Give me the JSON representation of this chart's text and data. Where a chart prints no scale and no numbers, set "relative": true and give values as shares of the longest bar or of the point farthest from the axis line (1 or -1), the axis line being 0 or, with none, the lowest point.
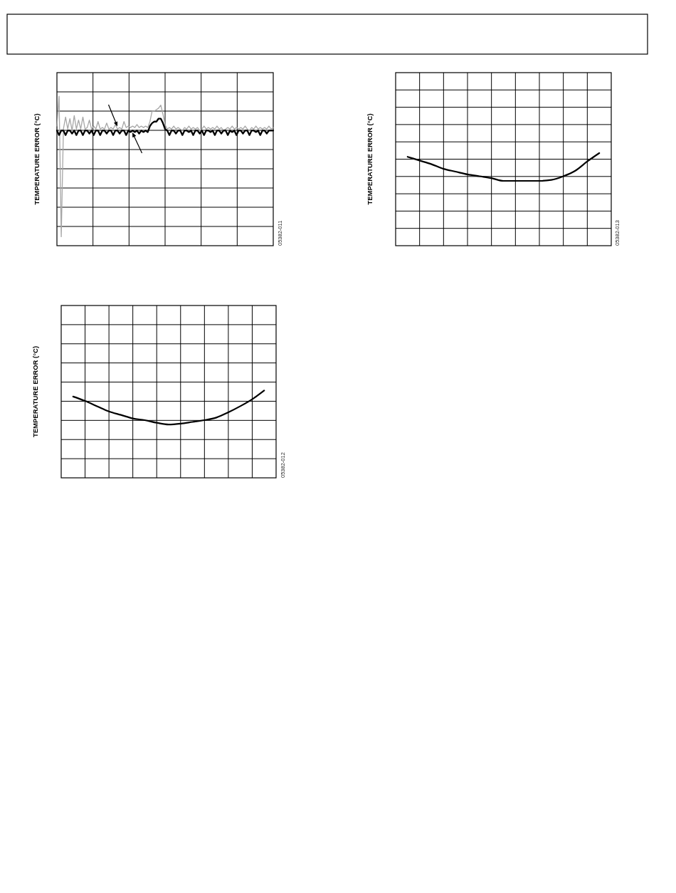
{
  "chart_data": [
    {
      "type": "line",
      "ylabel": "TEMPERATURE ERROR (°C)",
      "relative": true,
      "grid": true,
      "annotations": [
        "05382-011"
      ],
      "categories": [
        null,
        null,
        null,
        null,
        null,
        null,
        null,
        null,
        null,
        null,
        null,
        null,
        null,
        null,
        null,
        null,
        null,
        null,
        null,
        null,
        null,
        null,
        null,
        null,
        null,
        null,
        null,
        null,
        null,
        null,
        null,
        null,
        null,
        null,
        null,
        null,
        null,
        null,
        null,
        null,
        null,
        null,
        null,
        null,
        null,
        null,
        null,
        null,
        null,
        null,
        null,
        null,
        null,
        null,
        null,
        null,
        null,
        null,
        null,
        null,
        null,
        null,
        null,
        null,
        null,
        null,
        null,
        null,
        null,
        null,
        null,
        null,
        null,
        null,
        null,
        null,
        null,
        null,
        null,
        null,
        null,
        null,
        null,
        null,
        null,
        null,
        null,
        null,
        null,
        null,
        null,
        null,
        null,
        null,
        null,
        null,
        null,
        null,
        null,
        null,
        null
      ],
      "series": [
        {
          "color": "#a6a6a6",
          "values": [
            0.8,
            1.0,
            0.06,
            0.78,
            0.86,
            0.78,
            0.85,
            0.77,
            0.87,
            0.78,
            0.84,
            0.78,
            0.86,
            0.78,
            0.79,
            0.84,
            0.78,
            0.8,
            0.78,
            0.83,
            0.78,
            0.79,
            0.78,
            0.82,
            0.78,
            0.79,
            0.78,
            0.81,
            0.78,
            0.79,
            0.78,
            0.83,
            0.79,
            0.8,
            0.79,
            0.8,
            0.79,
            0.81,
            0.79,
            0.8,
            0.79,
            0.8,
            0.79,
            0.83,
            0.9,
            0.9,
            0.91,
            0.92,
            0.94,
            0.88,
            0.81,
            0.78,
            0.79,
            0.78,
            0.8,
            0.78,
            0.79,
            0.78,
            0.77,
            0.79,
            0.78,
            0.8,
            0.78,
            0.79,
            0.78,
            0.79,
            0.77,
            0.78,
            0.8,
            0.78,
            0.79,
            0.78,
            0.79,
            0.78,
            0.8,
            0.78,
            0.79,
            0.77,
            0.78,
            0.79,
            0.78,
            0.8,
            0.78,
            0.79,
            0.78,
            0.79,
            0.78,
            0.8,
            0.78,
            0.77,
            0.79,
            0.78,
            0.8,
            0.78,
            0.79,
            0.78,
            0.79,
            0.78,
            0.8,
            0.78,
            0.79
          ]
        },
        {
          "color": "#000000",
          "values": [
            0.77,
            0.74,
            0.77,
            0.77,
            0.74,
            0.77,
            0.77,
            0.75,
            0.77,
            0.74,
            0.77,
            0.77,
            0.74,
            0.77,
            0.77,
            0.75,
            0.77,
            0.74,
            0.77,
            0.77,
            0.74,
            0.77,
            0.77,
            0.75,
            0.77,
            0.77,
            0.74,
            0.77,
            0.77,
            0.75,
            0.77,
            0.77,
            0.74,
            0.77,
            0.76,
            0.77,
            0.76,
            0.77,
            0.75,
            0.77,
            0.76,
            0.77,
            0.76,
            0.8,
            0.82,
            0.83,
            0.83,
            0.85,
            0.85,
            0.82,
            0.78,
            0.77,
            0.74,
            0.77,
            0.77,
            0.75,
            0.77,
            0.77,
            0.74,
            0.77,
            0.77,
            0.76,
            0.77,
            0.74,
            0.77,
            0.77,
            0.75,
            0.77,
            0.74,
            0.77,
            0.77,
            0.76,
            0.77,
            0.74,
            0.77,
            0.77,
            0.75,
            0.77,
            0.77,
            0.74,
            0.77,
            0.76,
            0.77,
            0.74,
            0.77,
            0.77,
            0.75,
            0.77,
            0.77,
            0.74,
            0.77,
            0.77,
            0.76,
            0.77,
            0.74,
            0.77,
            0.77,
            0.75,
            0.77,
            0.77,
            0.77
          ]
        }
      ]
    },
    {
      "type": "line",
      "ylabel": "TEMPERATURE ERROR (°C)",
      "relative": true,
      "grid": true,
      "annotations": [
        "05382-013"
      ],
      "categories": [
        null,
        null,
        null,
        null,
        null,
        null,
        null,
        null,
        null,
        null,
        null,
        null,
        null,
        null,
        null,
        null,
        null
      ],
      "series": [
        {
          "color": "#000000",
          "values": [
            0.96,
            0.92,
            0.88,
            0.83,
            0.8,
            0.77,
            0.75,
            0.73,
            0.7,
            0.7,
            0.7,
            0.7,
            0.71,
            0.75,
            0.81,
            0.91,
            1.0
          ]
        }
      ]
    },
    {
      "type": "line",
      "ylabel": "TEMPERATURE ERROR (°C)",
      "relative": true,
      "grid": true,
      "annotations": [
        "05382-012"
      ],
      "categories": [
        null,
        null,
        null,
        null,
        null,
        null,
        null,
        null,
        null,
        null,
        null,
        null,
        null,
        null,
        null,
        null,
        null
      ],
      "series": [
        {
          "color": "#000000",
          "values": [
            0.93,
            0.88,
            0.82,
            0.76,
            0.72,
            0.68,
            0.66,
            0.63,
            0.61,
            0.62,
            0.64,
            0.66,
            0.69,
            0.75,
            0.82,
            0.9,
            1.0
          ]
        }
      ]
    }
  ]
}
